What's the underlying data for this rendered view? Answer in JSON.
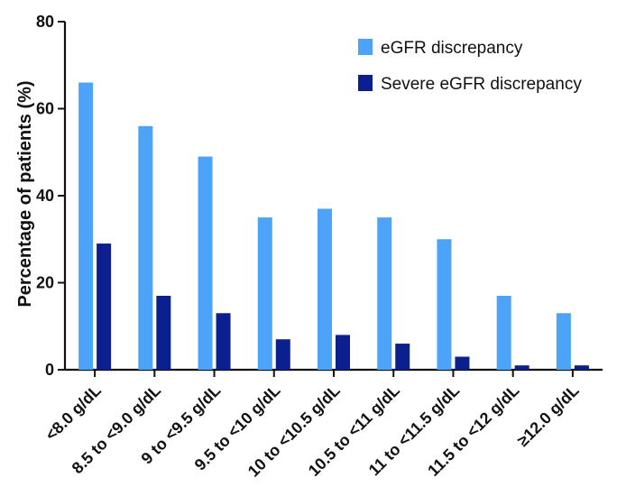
{
  "chart_data": {
    "type": "bar",
    "title": "",
    "xlabel": "",
    "ylabel": "Percentage of patients (%)",
    "ylim": [
      0,
      80
    ],
    "yticks": [
      0,
      20,
      40,
      60,
      80
    ],
    "categories": [
      "<8.0 g/dL",
      "8.5 to <9.0 g/dL",
      "9 to <9.5 g/dL",
      "9.5 to <10 g/dL",
      "10 to <10.5 g/dL",
      "10.5 to <11 g/dL",
      "11 to <11.5 g/dL",
      "11.5 to <12 g/dL",
      "≥12.0 g/dL"
    ],
    "series": [
      {
        "name": "eGFR discrepancy",
        "color": "#4da3f7",
        "values": [
          66,
          56,
          49,
          35,
          37,
          35,
          30,
          17,
          13
        ]
      },
      {
        "name": "Severe eGFR discrepancy",
        "color": "#0b1f8f",
        "values": [
          29,
          17,
          13,
          7,
          8,
          6,
          3,
          1,
          1
        ]
      }
    ],
    "grid": false,
    "legend_position": "top-right"
  }
}
